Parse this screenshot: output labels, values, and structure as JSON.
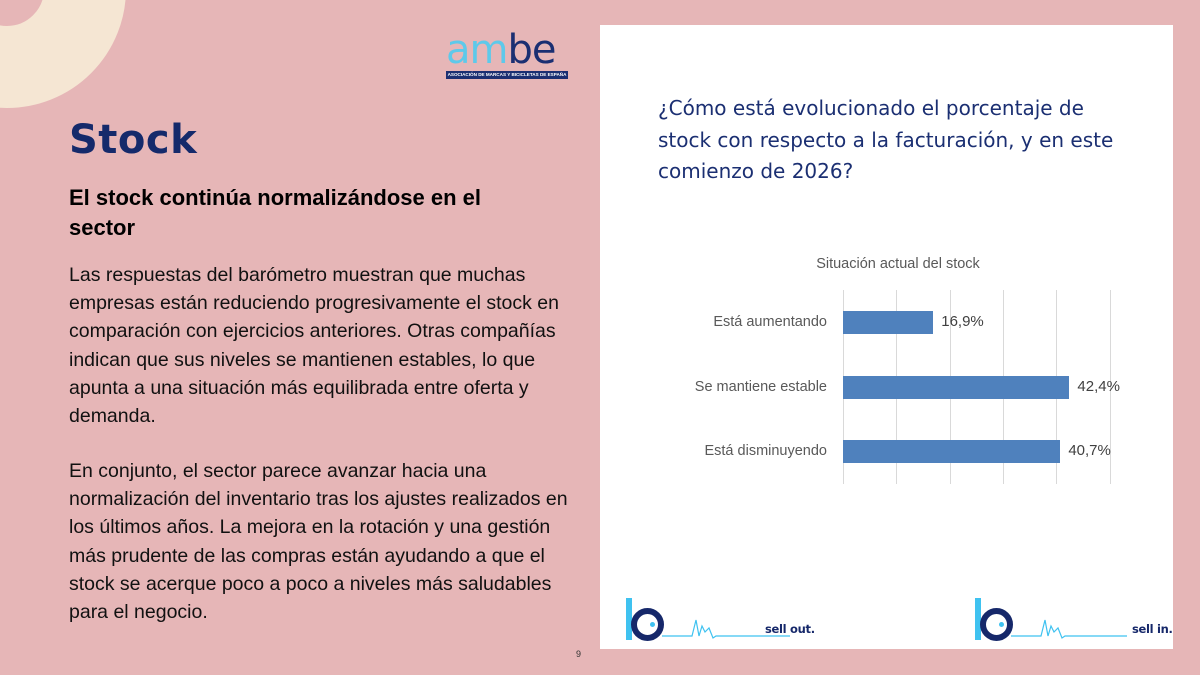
{
  "slide": {
    "page_number": "9",
    "title": "Stock",
    "subtitle": "El stock continúa normalizándose en el sector",
    "paragraphs": [
      "Las respuestas del barómetro muestran que muchas empresas están reduciendo progresivamente el stock en comparación con ejercicios anteriores. Otras compañías indican que sus niveles se mantienen estables, lo que apunta a una situación más equilibrada entre oferta y demanda.",
      "En conjunto, el sector parece avanzar hacia una normalización del inventario tras los ajustes realizados en los últimos años. La mejora en la rotación y una gestión más prudente de las compras están ayudando a que el stock se acerque poco a poco a niveles más saludables para el negocio."
    ]
  },
  "logo": {
    "word_part1": "am",
    "word_part2": "be",
    "tagline": "ASOCIACIÓN DE MARCAS Y BICICLETAS DE ESPAÑA"
  },
  "card": {
    "question": "¿Cómo está evolucionado el porcentaje de stock con respecto a la facturación, y en este comienzo de 2026?",
    "footer_brands": [
      {
        "label": "sell out.",
        "icon": "gauge-icon"
      },
      {
        "label": "sell in.",
        "icon": "gauge-icon"
      }
    ]
  },
  "colors": {
    "background": "#e6b6b7",
    "ring": "#f5e6d3",
    "navy": "#152a6b",
    "bar": "#4f81bd",
    "accent_light_blue": "#3fc2f0"
  },
  "chart_data": {
    "type": "bar",
    "orientation": "horizontal",
    "title": "Situación actual del stock",
    "categories": [
      "Está aumentando",
      "Se mantiene estable",
      "Está disminuyendo"
    ],
    "values": [
      16.9,
      42.4,
      40.7
    ],
    "value_labels": [
      "16,9%",
      "42,4%",
      "40,7%"
    ],
    "xlabel": "",
    "ylabel": "",
    "xlim": [
      0,
      50
    ],
    "grid": true,
    "gridline_step": 10,
    "legend": "none"
  }
}
